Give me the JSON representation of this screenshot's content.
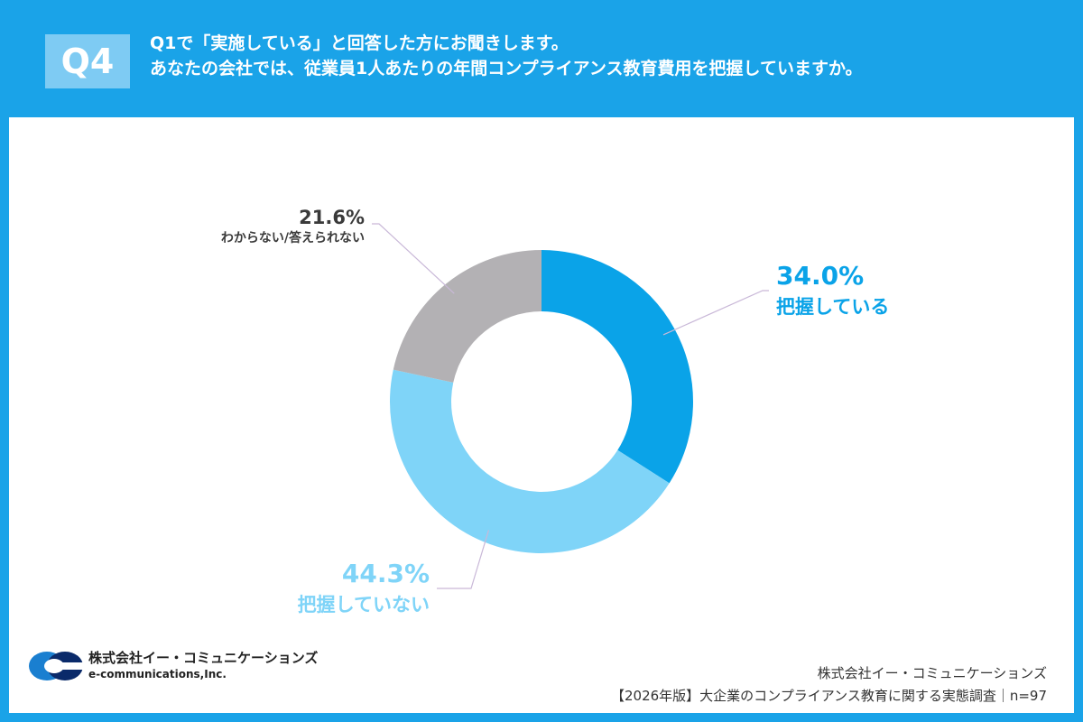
{
  "header": {
    "badge": "Q4",
    "question_lines": [
      "Q1で「実施している」と回答した方にお聞きします。",
      "あなたの会社では、従業員1人あたりの年間コンプライアンス教育費用を把握していますか。"
    ]
  },
  "chart_data": {
    "type": "pie",
    "donut": true,
    "slices": [
      {
        "label": "把握している",
        "value": 34.0,
        "display": "34.0%",
        "color": "#0aa3e8",
        "label_color": "#0aa3e8"
      },
      {
        "label": "把握していない",
        "value": 44.3,
        "display": "44.3%",
        "color": "#7fd4f8",
        "label_color": "#7fd4f8"
      },
      {
        "label": "わからない/答えられない",
        "value": 21.6,
        "display": "21.6%",
        "color": "#b3b1b4",
        "label_color": "#3a3a3a"
      }
    ]
  },
  "logo": {
    "name": "株式会社イー・コミュニケーションズ",
    "english": "e-communications,Inc."
  },
  "footer": {
    "company": "株式会社イー・コミュニケーションズ",
    "survey": "【2026年版】大企業のコンプライアンス教育に関する実態調査｜n=97"
  }
}
